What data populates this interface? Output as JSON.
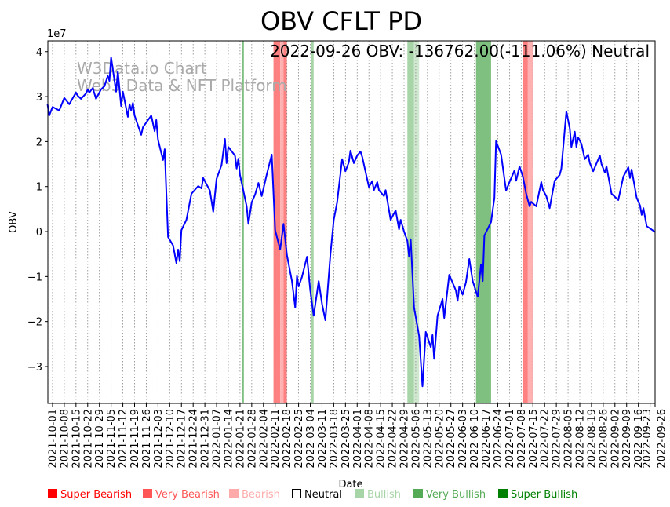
{
  "chart_data": {
    "type": "line",
    "title": "OBV CFLT PD",
    "annotation": "2022-09-26 OBV: -136762.00(-111.06%) Neutral",
    "watermark": [
      "W3Data.io Chart",
      "Web3 Data & NFT Platform"
    ],
    "xlabel": "Date",
    "ylabel": "OBV",
    "y_scale_label": "1e7",
    "y_unit_multiplier": 10000000,
    "ylim": [
      -3.82,
      4.24
    ],
    "y_ticks": [
      -3,
      -2,
      -1,
      0,
      1,
      2,
      3,
      4
    ],
    "y_tick_labels": [
      "−3",
      "−2",
      "−1",
      "0",
      "1",
      "2",
      "3",
      "4"
    ],
    "x_origin": "2021-10-01",
    "xlim_days": [
      -2.8,
      360
    ],
    "x_tick_labels": [
      "2021-10-01",
      "2021-10-08",
      "2021-10-15",
      "2021-10-22",
      "2021-10-29",
      "2021-11-05",
      "2021-11-12",
      "2021-11-19",
      "2021-11-26",
      "2021-12-03",
      "2021-12-10",
      "2021-12-17",
      "2021-12-24",
      "2021-12-31",
      "2022-01-07",
      "2022-01-14",
      "2022-01-21",
      "2022-01-28",
      "2022-02-04",
      "2022-02-11",
      "2022-02-18",
      "2022-02-25",
      "2022-03-04",
      "2022-03-11",
      "2022-03-18",
      "2022-03-25",
      "2022-04-01",
      "2022-04-08",
      "2022-04-15",
      "2022-04-22",
      "2022-04-29",
      "2022-05-06",
      "2022-05-13",
      "2022-05-20",
      "2022-05-27",
      "2022-06-03",
      "2022-06-10",
      "2022-06-17",
      "2022-06-24",
      "2022-07-01",
      "2022-07-08",
      "2022-07-15",
      "2022-07-22",
      "2022-07-29",
      "2022-08-05",
      "2022-08-12",
      "2022-08-19",
      "2022-08-26",
      "2022-09-02",
      "2022-09-09",
      "2022-09-16",
      "2022-09-23",
      "2022-09-26"
    ],
    "grid": "vertical dotted",
    "series": [
      {
        "name": "OBV",
        "color": "#0000ff",
        "points_days_value": [
          [
            -3,
            2.83
          ],
          [
            -2,
            2.58
          ],
          [
            0,
            2.77
          ],
          [
            4,
            2.69
          ],
          [
            7,
            2.97
          ],
          [
            10,
            2.83
          ],
          [
            14,
            3.09
          ],
          [
            15,
            3.02
          ],
          [
            17,
            2.95
          ],
          [
            20,
            3.07
          ],
          [
            21,
            3.16
          ],
          [
            22,
            3.09
          ],
          [
            24,
            3.19
          ],
          [
            26,
            2.95
          ],
          [
            29,
            3.16
          ],
          [
            31,
            3.23
          ],
          [
            33,
            3.46
          ],
          [
            34,
            3.35
          ],
          [
            35,
            3.87
          ],
          [
            38,
            3.11
          ],
          [
            39,
            3.56
          ],
          [
            41,
            2.79
          ],
          [
            42,
            3.11
          ],
          [
            45,
            2.55
          ],
          [
            46,
            2.83
          ],
          [
            47,
            2.69
          ],
          [
            48,
            2.86
          ],
          [
            49,
            2.58
          ],
          [
            53,
            2.15
          ],
          [
            54,
            2.32
          ],
          [
            59,
            2.58
          ],
          [
            61,
            2.23
          ],
          [
            62,
            2.48
          ],
          [
            63,
            2.04
          ],
          [
            66,
            1.59
          ],
          [
            67,
            1.83
          ],
          [
            69,
            -0.12
          ],
          [
            72,
            -0.31
          ],
          [
            74,
            -0.7
          ],
          [
            75,
            -0.4
          ],
          [
            76,
            -0.66
          ],
          [
            77,
            0.03
          ],
          [
            80,
            0.26
          ],
          [
            83,
            0.84
          ],
          [
            87,
            1.01
          ],
          [
            89,
            0.96
          ],
          [
            90,
            1.19
          ],
          [
            94,
            0.91
          ],
          [
            96,
            0.44
          ],
          [
            98,
            1.17
          ],
          [
            101,
            1.48
          ],
          [
            103,
            2.06
          ],
          [
            104,
            1.52
          ],
          [
            105,
            1.88
          ],
          [
            109,
            1.69
          ],
          [
            110,
            1.4
          ],
          [
            111,
            1.62
          ],
          [
            112,
            1.26
          ],
          [
            116,
            0.56
          ],
          [
            117,
            0.17
          ],
          [
            119,
            0.65
          ],
          [
            121,
            0.82
          ],
          [
            123,
            1.08
          ],
          [
            125,
            0.79
          ],
          [
            128,
            1.27
          ],
          [
            131,
            1.71
          ],
          [
            133,
            0.03
          ],
          [
            136,
            -0.4
          ],
          [
            138,
            0.17
          ],
          [
            140,
            -0.52
          ],
          [
            143,
            -1.1
          ],
          [
            145,
            -1.69
          ],
          [
            146,
            -0.99
          ],
          [
            147,
            -1.22
          ],
          [
            149,
            -1.01
          ],
          [
            152,
            -0.56
          ],
          [
            154,
            -1.31
          ],
          [
            156,
            -1.87
          ],
          [
            159,
            -1.1
          ],
          [
            161,
            -1.61
          ],
          [
            163,
            -1.97
          ],
          [
            166,
            -0.52
          ],
          [
            168,
            0.26
          ],
          [
            170,
            0.65
          ],
          [
            173,
            1.61
          ],
          [
            175,
            1.34
          ],
          [
            177,
            1.54
          ],
          [
            178,
            1.8
          ],
          [
            180,
            1.52
          ],
          [
            182,
            1.69
          ],
          [
            184,
            1.78
          ],
          [
            185,
            1.66
          ],
          [
            189,
            0.99
          ],
          [
            191,
            1.12
          ],
          [
            192,
            0.92
          ],
          [
            194,
            1.1
          ],
          [
            195,
            0.92
          ],
          [
            198,
            0.79
          ],
          [
            199,
            0.92
          ],
          [
            202,
            0.26
          ],
          [
            205,
            0.47
          ],
          [
            207,
            0.05
          ],
          [
            208,
            0.26
          ],
          [
            210,
            0.0
          ],
          [
            212,
            -0.21
          ],
          [
            213,
            -0.56
          ],
          [
            214,
            -0.17
          ],
          [
            216,
            -1.69
          ],
          [
            219,
            -2.32
          ],
          [
            221,
            -3.44
          ],
          [
            223,
            -2.23
          ],
          [
            226,
            -2.57
          ],
          [
            227,
            -2.3
          ],
          [
            228,
            -2.83
          ],
          [
            230,
            -1.87
          ],
          [
            233,
            -1.5
          ],
          [
            234,
            -1.92
          ],
          [
            237,
            -0.96
          ],
          [
            241,
            -1.31
          ],
          [
            242,
            -1.54
          ],
          [
            243,
            -1.22
          ],
          [
            245,
            -1.4
          ],
          [
            247,
            -1.13
          ],
          [
            249,
            -0.61
          ],
          [
            251,
            -1.1
          ],
          [
            254,
            -1.45
          ],
          [
            256,
            -0.73
          ],
          [
            257,
            -1.1
          ],
          [
            258,
            -0.09
          ],
          [
            262,
            0.21
          ],
          [
            264,
            0.75
          ],
          [
            265,
            2.01
          ],
          [
            268,
            1.71
          ],
          [
            271,
            0.91
          ],
          [
            273,
            1.1
          ],
          [
            276,
            1.36
          ],
          [
            277,
            1.13
          ],
          [
            279,
            1.45
          ],
          [
            281,
            1.22
          ],
          [
            283,
            0.84
          ],
          [
            285,
            0.56
          ],
          [
            286,
            0.66
          ],
          [
            289,
            0.56
          ],
          [
            292,
            1.1
          ],
          [
            293,
            0.92
          ],
          [
            295,
            0.79
          ],
          [
            297,
            0.52
          ],
          [
            300,
            1.13
          ],
          [
            303,
            1.26
          ],
          [
            304,
            1.4
          ],
          [
            307,
            2.67
          ],
          [
            309,
            2.3
          ],
          [
            310,
            1.88
          ],
          [
            312,
            2.22
          ],
          [
            313,
            1.88
          ],
          [
            314,
            2.09
          ],
          [
            316,
            1.95
          ],
          [
            318,
            1.61
          ],
          [
            320,
            1.71
          ],
          [
            321,
            1.52
          ],
          [
            323,
            1.34
          ],
          [
            327,
            1.69
          ],
          [
            328,
            1.5
          ],
          [
            330,
            1.31
          ],
          [
            331,
            1.45
          ],
          [
            334,
            0.84
          ],
          [
            338,
            0.7
          ],
          [
            341,
            1.22
          ],
          [
            344,
            1.43
          ],
          [
            345,
            1.19
          ],
          [
            346,
            1.38
          ],
          [
            349,
            0.75
          ],
          [
            351,
            0.58
          ],
          [
            352,
            0.37
          ],
          [
            353,
            0.52
          ],
          [
            355,
            0.12
          ],
          [
            360,
            -0.01
          ]
        ]
      }
    ],
    "signal_bands": [
      {
        "start_day": 113,
        "end_day": 114.3,
        "signal": "very_bullish",
        "color": "#7fbf7f"
      },
      {
        "start_day": 132,
        "end_day": 136,
        "signal": "very_bearish",
        "color": "#ff8080"
      },
      {
        "start_day": 136,
        "end_day": 138,
        "signal": "bearish",
        "color": "#ffb0b0"
      },
      {
        "start_day": 138,
        "end_day": 140,
        "signal": "very_bearish",
        "color": "#ff8080"
      },
      {
        "start_day": 154.5,
        "end_day": 156,
        "signal": "bullish",
        "color": "#a8d5a8"
      },
      {
        "start_day": 212,
        "end_day": 216,
        "signal": "bullish",
        "color": "#a8d5a8"
      },
      {
        "start_day": 216,
        "end_day": 219,
        "signal": "bullish",
        "color": "#d0e8d0"
      },
      {
        "start_day": 253,
        "end_day": 262,
        "signal": "very_bullish",
        "color": "#7fbf7f"
      },
      {
        "start_day": 281,
        "end_day": 284,
        "signal": "very_bearish",
        "color": "#ff8080"
      },
      {
        "start_day": 284,
        "end_day": 287,
        "signal": "bearish",
        "color": "#ffb0b0"
      }
    ],
    "legend": {
      "placement": "bottom",
      "items": [
        {
          "label": "Super Bearish",
          "color": "#ff0000"
        },
        {
          "label": "Very Bearish",
          "color": "#ff5555"
        },
        {
          "label": "Bearish",
          "color": "#ffaaaa"
        },
        {
          "label": "Neutral",
          "color": "#000000",
          "hollow": true
        },
        {
          "label": "Bullish",
          "color": "#a8d5a8"
        },
        {
          "label": "Very Bullish",
          "color": "#55aa55"
        },
        {
          "label": "Super Bullish",
          "color": "#008000"
        }
      ]
    }
  }
}
